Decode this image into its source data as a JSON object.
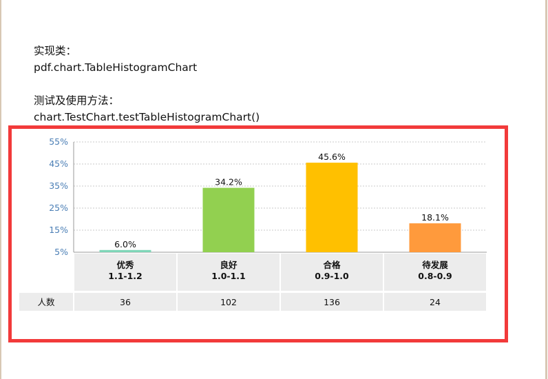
{
  "doc": {
    "impl_heading": "实现类：",
    "impl_value": "pdf.chart.TableHistogramChart",
    "test_heading": "测试及使用方法：",
    "test_value": "chart.TestChart.testTableHistogramChart()"
  },
  "colors": {
    "highlight": "#f23a3a",
    "tick_text": "#4a7eb5",
    "table_bg": "#ececec"
  },
  "chart_data": {
    "type": "bar",
    "categories": [
      {
        "name": "优秀",
        "range": "1.1-1.2"
      },
      {
        "name": "良好",
        "range": "1.0-1.1"
      },
      {
        "name": "合格",
        "range": "0.9-1.0"
      },
      {
        "name": "待发展",
        "range": "0.8-0.9"
      }
    ],
    "values": [
      6.0,
      34.2,
      45.6,
      18.1
    ],
    "value_labels": [
      "6.0%",
      "34.2%",
      "45.6%",
      "18.1%"
    ],
    "bar_colors": [
      "#7fd6b8",
      "#92d050",
      "#ffc000",
      "#ff9a3c"
    ],
    "ylim": [
      5,
      55
    ],
    "yticks": [
      5,
      15,
      25,
      35,
      45,
      55
    ],
    "ytick_labels": [
      "5%",
      "15%",
      "25%",
      "35%",
      "45%",
      "55%"
    ],
    "grid": true,
    "table": {
      "row_label": "人数",
      "row_values": [
        "36",
        "102",
        "136",
        "24"
      ]
    }
  }
}
